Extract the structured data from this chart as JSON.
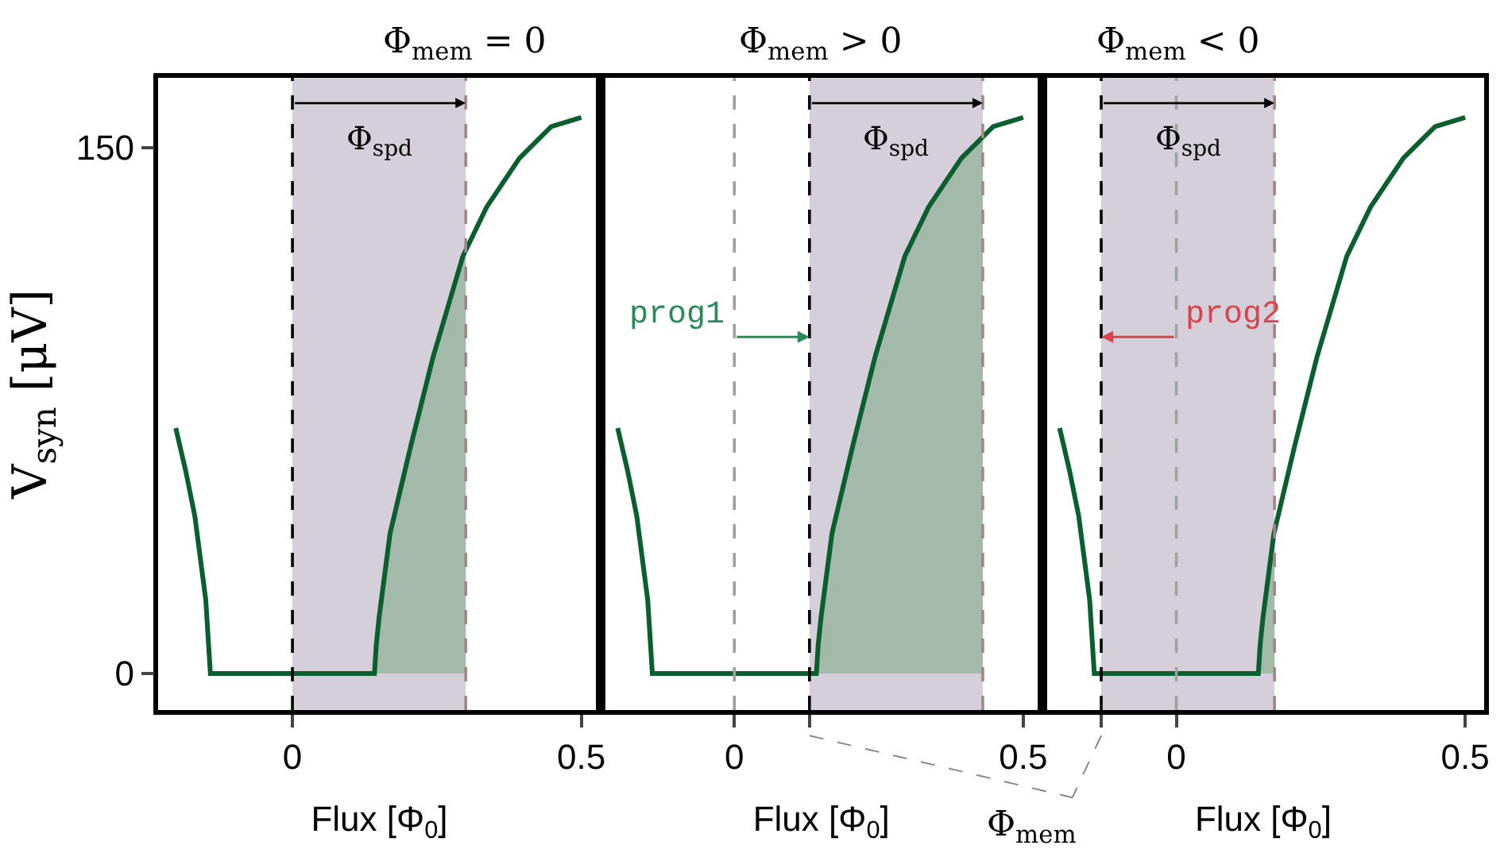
{
  "chart_data": [
    {
      "type": "line",
      "title": "Φ$_{mem}$ = 0",
      "xlabel": "Flux [Φ$_{0}$]",
      "ylabel": "V$_{syn}$ [μV]",
      "series": [
        {
          "type": "area",
          "color": "#a3b9a9",
          "x": [
            0.142,
            0.145,
            0.15,
            0.169,
            0.205,
            0.243,
            0.295,
            0.3
          ],
          "values": [
            0,
            8,
            16,
            40,
            65,
            90,
            119,
            121
          ]
        },
        {
          "color": "#0b5e2e",
          "x": [
            -0.202,
            -0.185,
            -0.169,
            -0.15,
            -0.142,
            0.142,
            0.145,
            0.15,
            0.169,
            0.205,
            0.243,
            0.295,
            0.336,
            0.393,
            0.448,
            0.5
          ],
          "values": [
            70,
            58,
            45,
            21,
            0,
            0,
            8,
            16,
            40,
            65,
            90,
            119,
            133,
            147,
            156,
            158.6
          ]
        }
      ],
      "bands": [
        {
          "axis": "x",
          "from": 0,
          "to": 0.3,
          "label": "Φ$_{spd}$",
          "color": "#d4cfd8"
        }
      ],
      "ref_lines": [
        {
          "axis": "x",
          "value": 0,
          "color": "#000000",
          "line_style": "dashed"
        },
        {
          "axis": "x",
          "value": 0.3,
          "color": "#a08888",
          "line_style": "dashed"
        }
      ],
      "xlim": [
        -0.232,
        0.533
      ],
      "xticks": [
        0,
        0.5
      ],
      "ylim": [
        -10.4,
        169.9
      ],
      "yticks": [
        0,
        150
      ],
      "grid": false
    },
    {
      "type": "line",
      "title": "Φ$_{mem}$ > 0",
      "xlabel": "Flux [Φ$_{0}$]",
      "series": [
        {
          "type": "area",
          "color": "#a3b9a9",
          "x": [
            0.13,
            0.142,
            0.145,
            0.15,
            0.169,
            0.205,
            0.243,
            0.295,
            0.336,
            0.393,
            0.43
          ],
          "values": [
            0,
            0,
            8,
            16,
            40,
            65,
            90,
            119,
            133,
            147,
            153
          ]
        },
        {
          "color": "#0b5e2e",
          "x": [
            -0.202,
            -0.185,
            -0.169,
            -0.15,
            -0.142,
            0.142,
            0.145,
            0.15,
            0.169,
            0.205,
            0.243,
            0.295,
            0.336,
            0.393,
            0.448,
            0.5
          ],
          "values": [
            70,
            58,
            45,
            21,
            0,
            0,
            8,
            16,
            40,
            65,
            90,
            119,
            133,
            147,
            156,
            158.6
          ]
        }
      ],
      "bands": [
        {
          "axis": "x",
          "from": 0.13,
          "to": 0.43,
          "label": "Φ$_{spd}$",
          "color": "#d4cfd8"
        }
      ],
      "ref_lines": [
        {
          "axis": "x",
          "value": 0.13,
          "color": "#000000",
          "line_style": "dashed"
        },
        {
          "axis": "x",
          "value": 0,
          "color": "#a0a0a0",
          "line_style": "dashed"
        },
        {
          "axis": "x",
          "value": 0.43,
          "color": "#a08888",
          "line_style": "dashed"
        }
      ],
      "annotations": [
        {
          "text": "prog1",
          "x": 0.13,
          "y": 96
        },
        "Φ$_{mem}$"
      ],
      "xlim": [
        -0.232,
        0.533
      ],
      "xticks": [
        0,
        0.5,
        {
          "value": 0.13,
          "label": null
        }
      ],
      "ylim": [
        -10.4,
        169.9
      ],
      "yticks": [
        0,
        150
      ],
      "tick_labels": "x",
      "grid": false
    },
    {
      "type": "line",
      "title": "Φ$_{mem}$ < 0",
      "xlabel": "Flux [Φ$_{0}$]",
      "series": [
        {
          "type": "area",
          "color": "#a3b9a9",
          "x": [
            0.142,
            0.145,
            0.15,
            0.169,
            0.17
          ],
          "values": [
            0,
            8,
            16,
            40,
            42
          ]
        },
        {
          "color": "#0b5e2e",
          "x": [
            -0.202,
            -0.185,
            -0.169,
            -0.15,
            -0.142,
            0.142,
            0.145,
            0.15,
            0.169,
            0.205,
            0.243,
            0.295,
            0.336,
            0.393,
            0.448,
            0.5
          ],
          "values": [
            70,
            58,
            45,
            21,
            0,
            0,
            8,
            16,
            40,
            65,
            90,
            119,
            133,
            147,
            156,
            158.6
          ]
        }
      ],
      "bands": [
        {
          "axis": "x",
          "from": -0.13,
          "to": 0.17,
          "label": "Φ$_{spd}$",
          "color": "#d4cfd8"
        }
      ],
      "ref_lines": [
        {
          "axis": "x",
          "value": -0.13,
          "color": "#000000",
          "line_style": "dashed"
        },
        {
          "axis": "x",
          "value": 0,
          "color": "#a0a0a0",
          "line_style": "dashed"
        },
        {
          "axis": "x",
          "value": 0.17,
          "color": "#a08888",
          "line_style": "dashed"
        }
      ],
      "annotations": [
        {
          "text": "prog2",
          "x": -0.13,
          "y": 96
        }
      ],
      "xlim": [
        -0.232,
        0.533
      ],
      "xticks": [
        0,
        0.5,
        {
          "value": -0.13,
          "label": null
        }
      ],
      "ylim": [
        -10.4,
        169.9
      ],
      "yticks": [
        0,
        150
      ],
      "tick_labels": "x",
      "grid": false
    }
  ]
}
